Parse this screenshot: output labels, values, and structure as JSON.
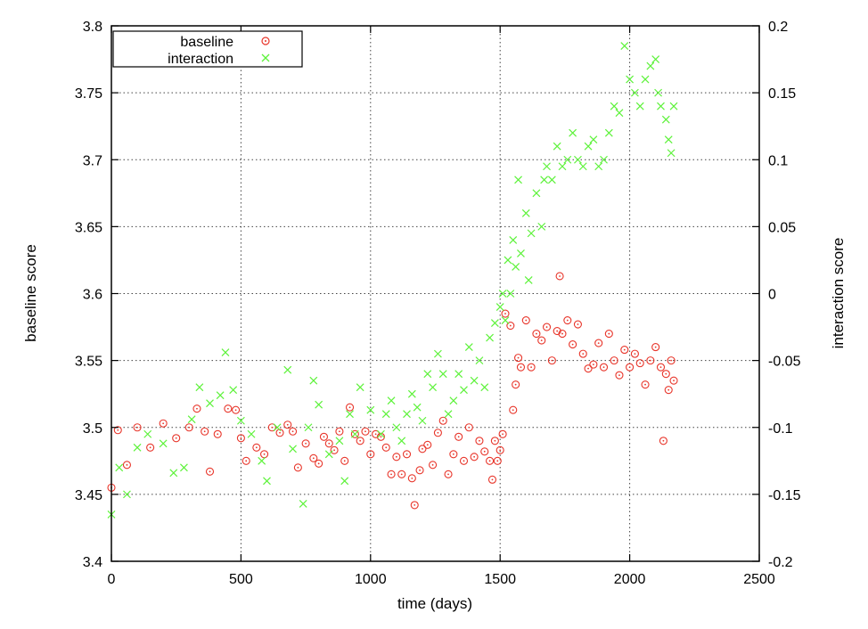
{
  "chart_data": {
    "type": "scatter",
    "xlabel": "time (days)",
    "ylabel": "baseline score",
    "y2label": "interaction score",
    "xlim": [
      0,
      2500
    ],
    "ylim": [
      3.4,
      3.8
    ],
    "y2lim": [
      -0.2,
      0.2
    ],
    "x_ticks": [
      "0",
      "500",
      "1000",
      "1500",
      "2000",
      "2500"
    ],
    "y_ticks": [
      "3.4",
      "3.45",
      "3.5",
      "3.55",
      "3.6",
      "3.65",
      "3.7",
      "3.75",
      "3.8"
    ],
    "y2_ticks": [
      "-0.2",
      "-0.15",
      "-0.1",
      "-0.05",
      "0",
      "0.05",
      "0.1",
      "0.15",
      "0.2"
    ],
    "grid": true,
    "legend_position": "top-left",
    "series": [
      {
        "name": "baseline",
        "axis": "left",
        "marker": "circle",
        "color": "#e8352a",
        "points": [
          [
            0,
            3.455
          ],
          [
            25,
            3.498
          ],
          [
            60,
            3.472
          ],
          [
            100,
            3.5
          ],
          [
            150,
            3.485
          ],
          [
            200,
            3.503
          ],
          [
            250,
            3.492
          ],
          [
            300,
            3.5
          ],
          [
            330,
            3.514
          ],
          [
            360,
            3.497
          ],
          [
            380,
            3.467
          ],
          [
            410,
            3.495
          ],
          [
            450,
            3.514
          ],
          [
            480,
            3.513
          ],
          [
            500,
            3.492
          ],
          [
            520,
            3.475
          ],
          [
            560,
            3.485
          ],
          [
            590,
            3.48
          ],
          [
            620,
            3.5
          ],
          [
            650,
            3.496
          ],
          [
            680,
            3.502
          ],
          [
            700,
            3.497
          ],
          [
            720,
            3.47
          ],
          [
            750,
            3.488
          ],
          [
            780,
            3.477
          ],
          [
            800,
            3.473
          ],
          [
            820,
            3.493
          ],
          [
            840,
            3.488
          ],
          [
            860,
            3.483
          ],
          [
            880,
            3.497
          ],
          [
            900,
            3.475
          ],
          [
            920,
            3.515
          ],
          [
            940,
            3.495
          ],
          [
            960,
            3.49
          ],
          [
            980,
            3.497
          ],
          [
            1000,
            3.48
          ],
          [
            1020,
            3.495
          ],
          [
            1040,
            3.493
          ],
          [
            1060,
            3.485
          ],
          [
            1080,
            3.465
          ],
          [
            1100,
            3.478
          ],
          [
            1120,
            3.465
          ],
          [
            1140,
            3.48
          ],
          [
            1160,
            3.462
          ],
          [
            1170,
            3.442
          ],
          [
            1190,
            3.468
          ],
          [
            1200,
            3.484
          ],
          [
            1220,
            3.487
          ],
          [
            1240,
            3.472
          ],
          [
            1260,
            3.496
          ],
          [
            1280,
            3.505
          ],
          [
            1300,
            3.465
          ],
          [
            1320,
            3.48
          ],
          [
            1340,
            3.493
          ],
          [
            1360,
            3.475
          ],
          [
            1380,
            3.5
          ],
          [
            1400,
            3.478
          ],
          [
            1420,
            3.49
          ],
          [
            1440,
            3.482
          ],
          [
            1460,
            3.475
          ],
          [
            1470,
            3.461
          ],
          [
            1480,
            3.49
          ],
          [
            1490,
            3.475
          ],
          [
            1500,
            3.483
          ],
          [
            1510,
            3.495
          ],
          [
            1520,
            3.585
          ],
          [
            1540,
            3.576
          ],
          [
            1550,
            3.513
          ],
          [
            1560,
            3.532
          ],
          [
            1570,
            3.552
          ],
          [
            1580,
            3.545
          ],
          [
            1600,
            3.58
          ],
          [
            1620,
            3.545
          ],
          [
            1640,
            3.57
          ],
          [
            1660,
            3.565
          ],
          [
            1680,
            3.575
          ],
          [
            1700,
            3.55
          ],
          [
            1720,
            3.572
          ],
          [
            1730,
            3.613
          ],
          [
            1740,
            3.57
          ],
          [
            1760,
            3.58
          ],
          [
            1780,
            3.562
          ],
          [
            1800,
            3.577
          ],
          [
            1820,
            3.555
          ],
          [
            1840,
            3.544
          ],
          [
            1860,
            3.547
          ],
          [
            1880,
            3.563
          ],
          [
            1900,
            3.545
          ],
          [
            1920,
            3.57
          ],
          [
            1940,
            3.55
          ],
          [
            1960,
            3.539
          ],
          [
            1980,
            3.558
          ],
          [
            2000,
            3.545
          ],
          [
            2020,
            3.555
          ],
          [
            2040,
            3.548
          ],
          [
            2060,
            3.532
          ],
          [
            2080,
            3.55
          ],
          [
            2100,
            3.56
          ],
          [
            2120,
            3.545
          ],
          [
            2130,
            3.49
          ],
          [
            2140,
            3.54
          ],
          [
            2150,
            3.528
          ],
          [
            2160,
            3.55
          ],
          [
            2170,
            3.535
          ]
        ]
      },
      {
        "name": "interaction",
        "axis": "right",
        "marker": "cross",
        "color": "#5df23a",
        "points": [
          [
            0,
            -0.165
          ],
          [
            30,
            -0.13
          ],
          [
            60,
            -0.15
          ],
          [
            100,
            -0.115
          ],
          [
            140,
            -0.105
          ],
          [
            200,
            -0.112
          ],
          [
            240,
            -0.134
          ],
          [
            280,
            -0.13
          ],
          [
            310,
            -0.094
          ],
          [
            340,
            -0.07
          ],
          [
            380,
            -0.082
          ],
          [
            420,
            -0.076
          ],
          [
            440,
            -0.044
          ],
          [
            470,
            -0.072
          ],
          [
            500,
            -0.095
          ],
          [
            540,
            -0.105
          ],
          [
            580,
            -0.125
          ],
          [
            600,
            -0.14
          ],
          [
            640,
            -0.1
          ],
          [
            680,
            -0.057
          ],
          [
            700,
            -0.116
          ],
          [
            740,
            -0.157
          ],
          [
            760,
            -0.1
          ],
          [
            780,
            -0.065
          ],
          [
            800,
            -0.083
          ],
          [
            840,
            -0.12
          ],
          [
            880,
            -0.11
          ],
          [
            900,
            -0.14
          ],
          [
            920,
            -0.09
          ],
          [
            940,
            -0.105
          ],
          [
            960,
            -0.07
          ],
          [
            1000,
            -0.087
          ],
          [
            1040,
            -0.105
          ],
          [
            1060,
            -0.09
          ],
          [
            1080,
            -0.08
          ],
          [
            1100,
            -0.1
          ],
          [
            1120,
            -0.11
          ],
          [
            1140,
            -0.09
          ],
          [
            1160,
            -0.075
          ],
          [
            1180,
            -0.085
          ],
          [
            1200,
            -0.095
          ],
          [
            1220,
            -0.06
          ],
          [
            1240,
            -0.07
          ],
          [
            1260,
            -0.045
          ],
          [
            1280,
            -0.06
          ],
          [
            1300,
            -0.09
          ],
          [
            1320,
            -0.08
          ],
          [
            1340,
            -0.06
          ],
          [
            1360,
            -0.072
          ],
          [
            1380,
            -0.04
          ],
          [
            1400,
            -0.065
          ],
          [
            1420,
            -0.05
          ],
          [
            1440,
            -0.07
          ],
          [
            1460,
            -0.033
          ],
          [
            1480,
            -0.022
          ],
          [
            1500,
            -0.01
          ],
          [
            1510,
            0.0
          ],
          [
            1520,
            -0.02
          ],
          [
            1530,
            0.025
          ],
          [
            1540,
            0.0
          ],
          [
            1550,
            0.04
          ],
          [
            1560,
            0.02
          ],
          [
            1570,
            0.085
          ],
          [
            1580,
            0.03
          ],
          [
            1600,
            0.06
          ],
          [
            1610,
            0.01
          ],
          [
            1620,
            0.045
          ],
          [
            1640,
            0.075
          ],
          [
            1660,
            0.05
          ],
          [
            1670,
            0.085
          ],
          [
            1680,
            0.095
          ],
          [
            1700,
            0.085
          ],
          [
            1720,
            0.11
          ],
          [
            1740,
            0.095
          ],
          [
            1760,
            0.1
          ],
          [
            1780,
            0.12
          ],
          [
            1800,
            0.1
          ],
          [
            1820,
            0.095
          ],
          [
            1840,
            0.11
          ],
          [
            1860,
            0.115
          ],
          [
            1880,
            0.095
          ],
          [
            1900,
            0.1
          ],
          [
            1920,
            0.12
          ],
          [
            1940,
            0.14
          ],
          [
            1960,
            0.135
          ],
          [
            1980,
            0.185
          ],
          [
            2000,
            0.16
          ],
          [
            2020,
            0.15
          ],
          [
            2040,
            0.14
          ],
          [
            2060,
            0.16
          ],
          [
            2080,
            0.17
          ],
          [
            2100,
            0.175
          ],
          [
            2110,
            0.15
          ],
          [
            2120,
            0.14
          ],
          [
            2140,
            0.13
          ],
          [
            2150,
            0.115
          ],
          [
            2160,
            0.105
          ],
          [
            2170,
            0.14
          ]
        ]
      }
    ]
  }
}
